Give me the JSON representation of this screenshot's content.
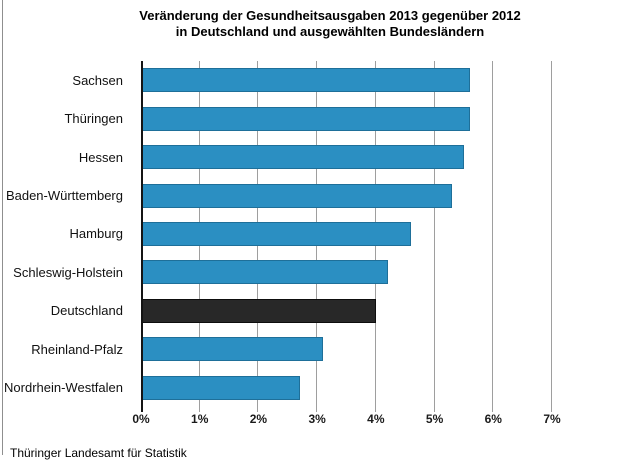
{
  "chart_data": {
    "type": "bar",
    "orientation": "horizontal",
    "title": {
      "line1": "Veränderung der Gesundheitsausgaben 2013 gegenüber 2012",
      "line2": "in Deutschland und ausgewählten Bundesländern"
    },
    "categories": [
      "Sachsen",
      "Thüringen",
      "Hessen",
      "Baden-Württemberg",
      "Hamburg",
      "Schleswig-Holstein",
      "Deutschland",
      "Rheinland-Pfalz",
      "Nordrhein-Westfalen"
    ],
    "values": [
      5.6,
      5.6,
      5.5,
      5.3,
      4.6,
      4.2,
      4.0,
      3.1,
      2.7
    ],
    "unit": "%",
    "highlight_category": "Deutschland",
    "x_axis": {
      "min": 0,
      "max": 7,
      "tick_labels": [
        "0%",
        "1%",
        "2%",
        "3%",
        "4%",
        "5%",
        "6%",
        "7%"
      ],
      "grid": true
    },
    "legend": "none",
    "colors": {
      "bar": "#2B8FC2",
      "bar_border": "#1E6F99",
      "highlight_bar": "#282828",
      "highlight_border": "#0D0D0D",
      "gridline": "#9E9E9E",
      "axis": "#141414"
    },
    "source": "Thüringer Landesamt für Statistik"
  }
}
